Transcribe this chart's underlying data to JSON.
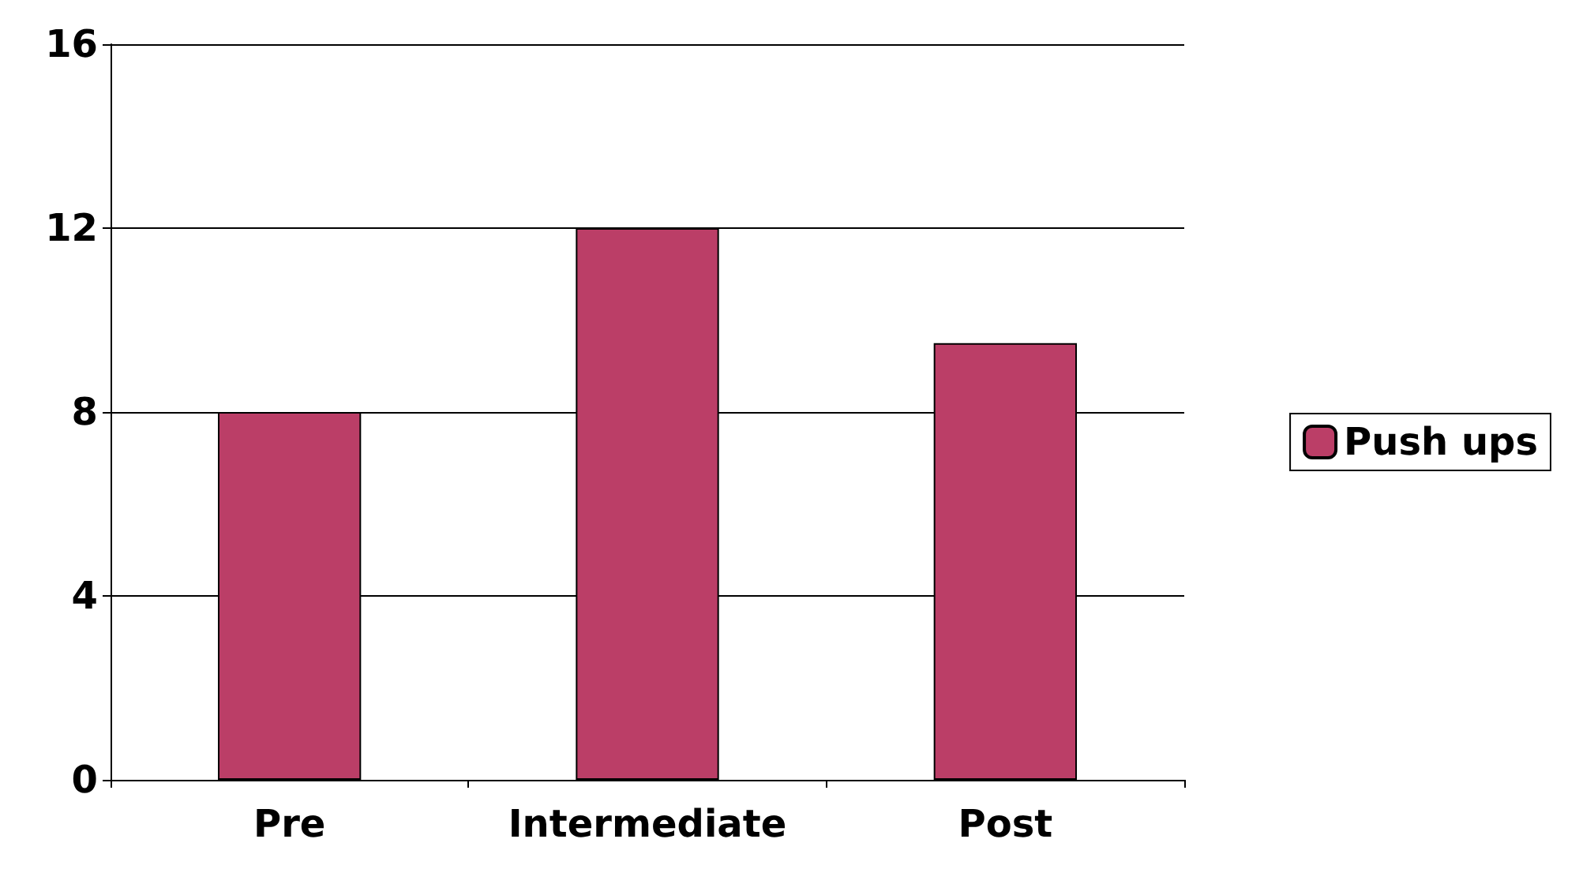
{
  "chart_data": {
    "type": "bar",
    "categories": [
      "Pre",
      "Intermediate",
      "Post"
    ],
    "series": [
      {
        "name": "Push ups",
        "color": "#bb3e67",
        "values": [
          8,
          12,
          9.5
        ]
      }
    ],
    "ylim": [
      0,
      16
    ],
    "yticks": [
      0,
      4,
      8,
      12,
      16
    ],
    "grid": "y",
    "legend": "right"
  }
}
